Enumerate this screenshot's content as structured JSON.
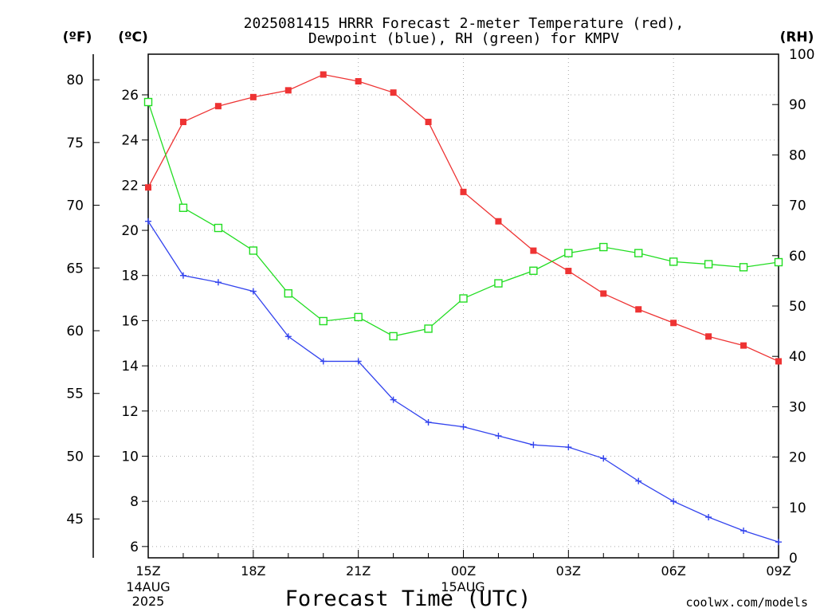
{
  "title": {
    "line1": "2025081415 HRRR Forecast 2-meter Temperature (red),",
    "line2": "Dewpoint (blue), RH (green) for KMPV"
  },
  "units": {
    "f": "(ºF)",
    "c": "(ºC)",
    "rh": "(RH)"
  },
  "xlabel": "Forecast Time (UTC)",
  "credit": "coolwx.com/models",
  "date_labels": {
    "d1_day": "14AUG",
    "d1_year": "2025",
    "d2_day": "15AUG"
  },
  "colors": {
    "temperature": "#ee3333",
    "dewpoint": "#3344ee",
    "rh": "#22dd22",
    "credit": "#dd2222",
    "grid": "#aaaaaa"
  },
  "chart_data": {
    "type": "line",
    "x": [
      "15Z",
      "16Z",
      "17Z",
      "18Z",
      "19Z",
      "20Z",
      "21Z",
      "22Z",
      "23Z",
      "00Z",
      "01Z",
      "02Z",
      "03Z",
      "04Z",
      "05Z",
      "06Z",
      "07Z",
      "08Z",
      "09Z"
    ],
    "xticks": [
      "15Z",
      "18Z",
      "21Z",
      "00Z",
      "03Z",
      "06Z",
      "09Z"
    ],
    "ylim_c": [
      5.5,
      27.8
    ],
    "yticks_c": [
      6,
      8,
      10,
      12,
      14,
      16,
      18,
      20,
      22,
      24,
      26
    ],
    "yticks_f": [
      45,
      50,
      55,
      60,
      65,
      70,
      75,
      80
    ],
    "ylim_rh": [
      0,
      100
    ],
    "yticks_rh": [
      0,
      10,
      20,
      30,
      40,
      50,
      60,
      70,
      80,
      90,
      100
    ],
    "grid": true,
    "series": [
      {
        "name": "Temperature",
        "axis": "c",
        "marker": "filled-square",
        "values": [
          21.9,
          24.8,
          25.5,
          25.9,
          26.2,
          26.9,
          26.6,
          26.1,
          24.8,
          21.7,
          20.4,
          19.1,
          18.2,
          17.2,
          16.5,
          15.9,
          15.3,
          14.9,
          14.2
        ]
      },
      {
        "name": "Dewpoint",
        "axis": "c",
        "marker": "plus",
        "values": [
          20.4,
          18.0,
          17.7,
          17.3,
          15.3,
          14.2,
          14.2,
          12.5,
          11.5,
          11.3,
          10.9,
          10.5,
          10.4,
          9.9,
          8.9,
          8.0,
          7.3,
          6.7,
          6.2
        ]
      },
      {
        "name": "RH",
        "axis": "rh",
        "marker": "open-square",
        "values": [
          90.5,
          69.5,
          65.5,
          61.0,
          52.5,
          47.0,
          47.8,
          44.0,
          45.5,
          51.5,
          54.5,
          57.0,
          60.5,
          61.7,
          60.5,
          58.8,
          58.3,
          57.7,
          58.7
        ]
      }
    ]
  }
}
